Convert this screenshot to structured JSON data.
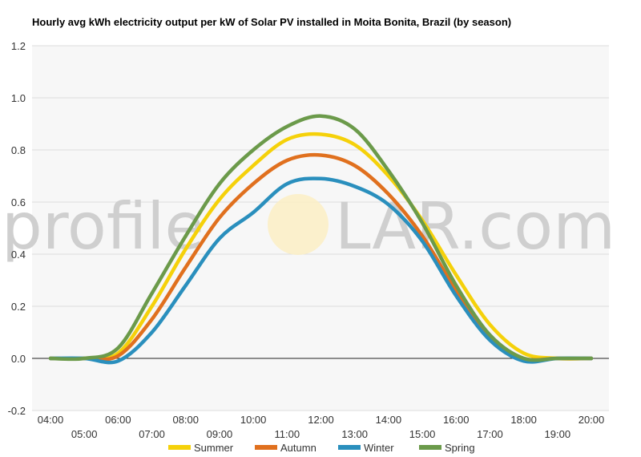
{
  "chart_data": {
    "type": "line",
    "title": "Hourly avg kWh electricity output per kW of Solar PV installed in Moita Bonita, Brazil (by season)",
    "xlabel": "",
    "ylabel": "",
    "ylim": [
      -0.2,
      1.2
    ],
    "yticks": [
      "-0.2",
      "0.0",
      "0.2",
      "0.4",
      "0.6",
      "0.8",
      "1.0",
      "1.2"
    ],
    "x": [
      "04:00",
      "05:00",
      "06:00",
      "07:00",
      "08:00",
      "09:00",
      "10:00",
      "11:00",
      "12:00",
      "13:00",
      "14:00",
      "15:00",
      "16:00",
      "17:00",
      "18:00",
      "19:00",
      "20:00"
    ],
    "grid": true,
    "legend_position": "bottom",
    "series": [
      {
        "name": "Summer",
        "color": "#f5d10a",
        "values": [
          0,
          0,
          0.02,
          0.2,
          0.42,
          0.61,
          0.74,
          0.84,
          0.86,
          0.82,
          0.7,
          0.53,
          0.32,
          0.13,
          0.02,
          0,
          0
        ]
      },
      {
        "name": "Autumn",
        "color": "#e0701e",
        "values": [
          0,
          0,
          0.01,
          0.15,
          0.35,
          0.54,
          0.67,
          0.76,
          0.78,
          0.74,
          0.63,
          0.47,
          0.26,
          0.08,
          0,
          0,
          0
        ]
      },
      {
        "name": "Winter",
        "color": "#2a8fbd",
        "values": [
          0,
          0,
          -0.01,
          0.1,
          0.28,
          0.46,
          0.56,
          0.67,
          0.69,
          0.66,
          0.59,
          0.45,
          0.24,
          0.07,
          -0.01,
          0,
          0
        ]
      },
      {
        "name": "Spring",
        "color": "#6b9a4a",
        "values": [
          0,
          0,
          0.04,
          0.25,
          0.47,
          0.67,
          0.8,
          0.89,
          0.93,
          0.88,
          0.72,
          0.52,
          0.28,
          0.09,
          0,
          0,
          0
        ]
      }
    ]
  },
  "watermark": {
    "left": "profile",
    "right": "LAR.com"
  }
}
